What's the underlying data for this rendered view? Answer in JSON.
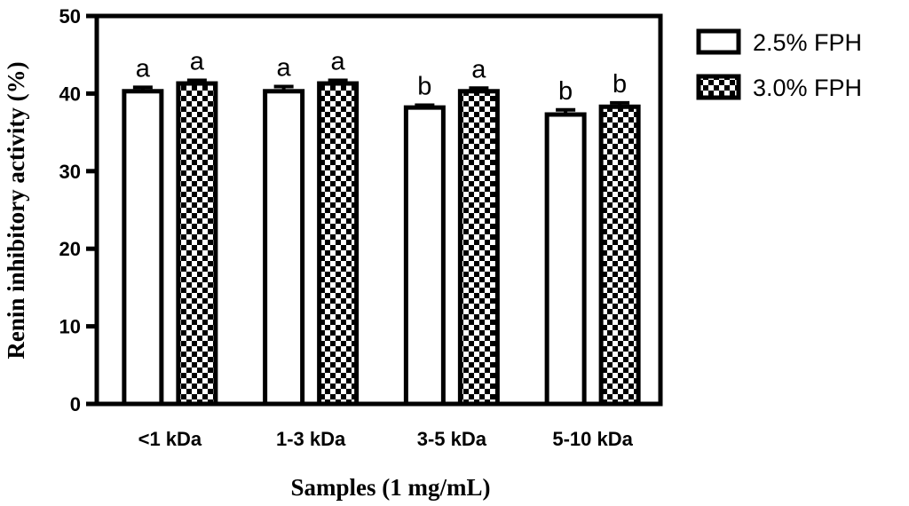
{
  "chart_data": {
    "type": "bar",
    "title": "",
    "xlabel": "Samples (1 mg/mL)",
    "ylabel": "Renin inhibitory activity (%)",
    "ylim": [
      0,
      50
    ],
    "yticks": [
      "0",
      "10",
      "20",
      "30",
      "40",
      "50"
    ],
    "categories": [
      "<1 kDa",
      "1-3 kDa",
      "3-5 kDa",
      "5-10 kDa"
    ],
    "series": [
      {
        "name": "2.5% FPH",
        "fill": "white",
        "values": [
          40.3,
          40.3,
          38.2,
          37.3
        ],
        "errors": [
          0.5,
          0.6,
          0.3,
          0.6
        ],
        "letters": [
          "a",
          "a",
          "b",
          "b"
        ]
      },
      {
        "name": "3.0% FPH",
        "fill": "checkered",
        "values": [
          41.3,
          41.3,
          40.3,
          38.3
        ],
        "errors": [
          0.4,
          0.4,
          0.4,
          0.5
        ],
        "letters": [
          "a",
          "a",
          "a",
          "b"
        ]
      }
    ],
    "legend_position": "top-right",
    "colors": {
      "stroke": "#000000",
      "fill": "#ffffff"
    }
  }
}
